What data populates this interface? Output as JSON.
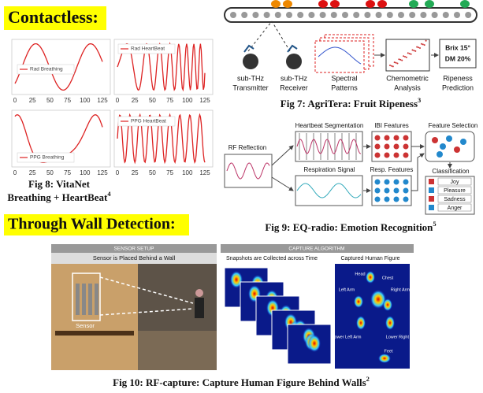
{
  "headings": {
    "contactless": "Contactless:",
    "through_wall": "Through Wall Detection:"
  },
  "fig8": {
    "plots": [
      "Rad Breathing",
      "Rad HeartBeat",
      "PPG Breathing",
      "PPG HeartBeat"
    ],
    "xticks": [
      0,
      25,
      50,
      75,
      100,
      125
    ],
    "caption": [
      "Fig 8: VitaNet",
      "Breathing + HeartBeat"
    ],
    "ref": "4"
  },
  "fig7": {
    "transmitter": [
      "sub-THz",
      "Transmitter"
    ],
    "receiver": [
      "sub-THz",
      "Receiver"
    ],
    "spectral": [
      "Spectral",
      "Patterns"
    ],
    "chemometric": [
      "Chemometric",
      "Analysis"
    ],
    "ripeness": [
      "Ripeness",
      "Prediction"
    ],
    "result": [
      "Brix 15°",
      "DM 20%"
    ],
    "caption": "Fig 7: AgriTera: Fruit Ripeness",
    "ref": "3"
  },
  "fig9": {
    "rf": "RF Reflection",
    "heartbeat": "Heartbeat Segmentation",
    "ibi": "IBI Features",
    "selection": "Feature Selection",
    "respiration": "Respiration Signal",
    "resp_features": "Resp. Features",
    "classification": "Classification",
    "emotions": [
      "Joy",
      "Pleasure",
      "Sadness",
      "Anger"
    ],
    "caption": "Fig 9: EQ-radio: Emotion Recognition",
    "ref": "5"
  },
  "fig10": {
    "setup_header": "SENSOR SETUP",
    "setup_title": "Sensor is Placed Behind a Wall",
    "sensor": "Sensor",
    "algo_header": "CAPTURE ALGORITHM",
    "snapshots": "Snapshots are Collected across Time",
    "figure_title": "Captured Human Figure",
    "parts": [
      "Head",
      "Chest",
      "Left Arm",
      "Right Arm",
      "Lower Left Arm",
      "Lower Right Arm",
      "Feet"
    ],
    "caption": "Fig 10: RF-capture: Capture Human Figure Behind Walls",
    "ref": "2"
  }
}
